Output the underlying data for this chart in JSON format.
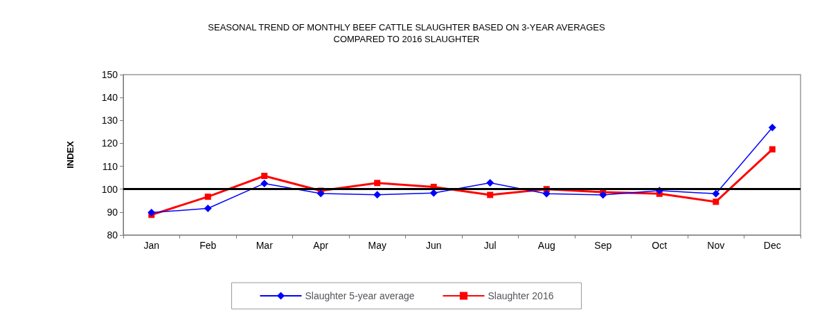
{
  "chart_data": {
    "type": "line",
    "title": "SEASONAL TREND OF MONTHLY BEEF CATTLE SLAUGHTER BASED ON 3-YEAR AVERAGES\nCOMPARED TO 2016 SLAUGHTER",
    "ylabel": "INDEX",
    "categories": [
      "Jan",
      "Feb",
      "Mar",
      "Apr",
      "May",
      "Jun",
      "Jul",
      "Aug",
      "Sep",
      "Oct",
      "Nov",
      "Dec"
    ],
    "series": [
      {
        "name": "Slaughter 5-year average",
        "color": "#0000ff",
        "marker": "diamond",
        "values": [
          89.8,
          91.6,
          102.5,
          98.1,
          97.6,
          98.3,
          102.8,
          98.0,
          97.5,
          99.4,
          98.0,
          126.9
        ]
      },
      {
        "name": "Slaughter 2016",
        "color": "#ff0000",
        "marker": "square",
        "values": [
          88.8,
          96.7,
          105.8,
          99.3,
          102.7,
          101.0,
          97.5,
          100.0,
          98.7,
          98.0,
          94.5,
          117.4
        ]
      }
    ],
    "ylim": [
      80,
      150
    ],
    "yticks": [
      80,
      90,
      100,
      110,
      120,
      130,
      140,
      150
    ],
    "grid": false,
    "legend": "bottom",
    "line_style": "solid",
    "ref_lines": [
      {
        "axis": "y",
        "value": 100,
        "color": "#000000"
      }
    ]
  }
}
